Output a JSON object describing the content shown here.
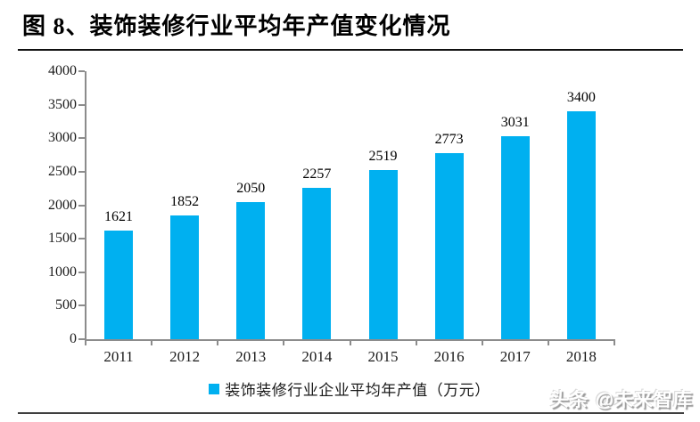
{
  "header": {
    "title": "图 8、装饰装修行业平均年产值变化情况"
  },
  "chart_data": {
    "type": "bar",
    "title": "装饰装修行业平均年产值变化情况",
    "categories": [
      "2011",
      "2012",
      "2013",
      "2014",
      "2015",
      "2016",
      "2017",
      "2018"
    ],
    "values": [
      1621,
      1852,
      2050,
      2257,
      2519,
      2773,
      3031,
      3400
    ],
    "series_name": "装饰装修行业企业平均年产值（万元）",
    "xlabel": "",
    "ylabel": "",
    "ylim": [
      0,
      4000
    ],
    "yticks": [
      0,
      500,
      1000,
      1500,
      2000,
      2500,
      3000,
      3500,
      4000
    ],
    "grid": false,
    "legend_position": "bottom",
    "data_labels": true,
    "bar_color": "#00B0F0",
    "axis_color": "#8C8C8C",
    "label_color": "#000000"
  },
  "footer": {
    "watermark": "头条 @未来智库"
  }
}
